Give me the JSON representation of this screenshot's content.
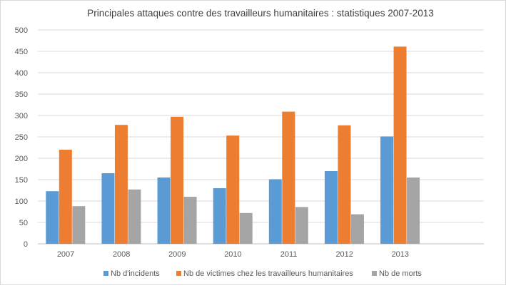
{
  "chart_data": {
    "type": "bar",
    "title": "Principales attaques contre des travailleurs humanitaires : statistiques 2007-2013",
    "xlabel": "",
    "ylabel": "",
    "categories": [
      "2007",
      "2008",
      "2009",
      "2010",
      "2011",
      "2012",
      "2013"
    ],
    "ylim": [
      0,
      500
    ],
    "y_ticks": [
      0,
      50,
      100,
      150,
      200,
      250,
      300,
      350,
      400,
      450,
      500
    ],
    "grid": true,
    "legend_position": "bottom",
    "series": [
      {
        "name": "Nb d'incidents",
        "color": "#5b9bd5",
        "values": [
          123,
          165,
          155,
          130,
          151,
          170,
          251
        ]
      },
      {
        "name": "Nb de victimes chez les travailleurs humanitaires",
        "color": "#ed7d31",
        "values": [
          220,
          278,
          297,
          253,
          309,
          277,
          461
        ]
      },
      {
        "name": "Nb de morts",
        "color": "#a5a5a5",
        "values": [
          88,
          127,
          110,
          72,
          86,
          69,
          155
        ]
      }
    ]
  }
}
